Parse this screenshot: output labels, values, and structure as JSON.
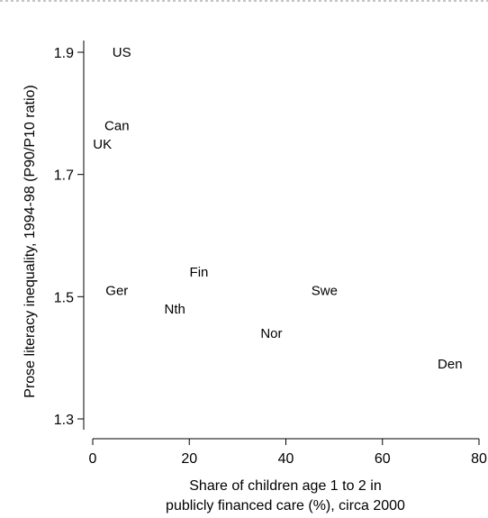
{
  "chart_data": {
    "type": "scatter",
    "title": "",
    "xlabel_lines": [
      "Share of children age 1 to 2 in",
      "publicly financed care (%), circa 2000"
    ],
    "ylabel": "Prose literacy inequality, 1994-98 (P90/P10 ratio)",
    "xlim": [
      0,
      80
    ],
    "ylim": [
      1.3,
      1.9
    ],
    "xticks": [
      0,
      20,
      40,
      60,
      80
    ],
    "xtick_labels": [
      "0",
      "20",
      "40",
      "60",
      "80"
    ],
    "yticks": [
      1.3,
      1.5,
      1.7,
      1.9
    ],
    "ytick_labels": [
      "1.3",
      "1.5",
      "1.7",
      "1.9"
    ],
    "grid": false,
    "marker": "text-labels",
    "points": [
      {
        "label": "US",
        "x": 6,
        "y": 1.9
      },
      {
        "label": "Can",
        "x": 5,
        "y": 1.78
      },
      {
        "label": "UK",
        "x": 2,
        "y": 1.75
      },
      {
        "label": "Ger",
        "x": 5,
        "y": 1.51
      },
      {
        "label": "Fin",
        "x": 22,
        "y": 1.54
      },
      {
        "label": "Nth",
        "x": 17,
        "y": 1.48
      },
      {
        "label": "Swe",
        "x": 48,
        "y": 1.51
      },
      {
        "label": "Nor",
        "x": 37,
        "y": 1.44
      },
      {
        "label": "Den",
        "x": 74,
        "y": 1.39
      }
    ]
  }
}
